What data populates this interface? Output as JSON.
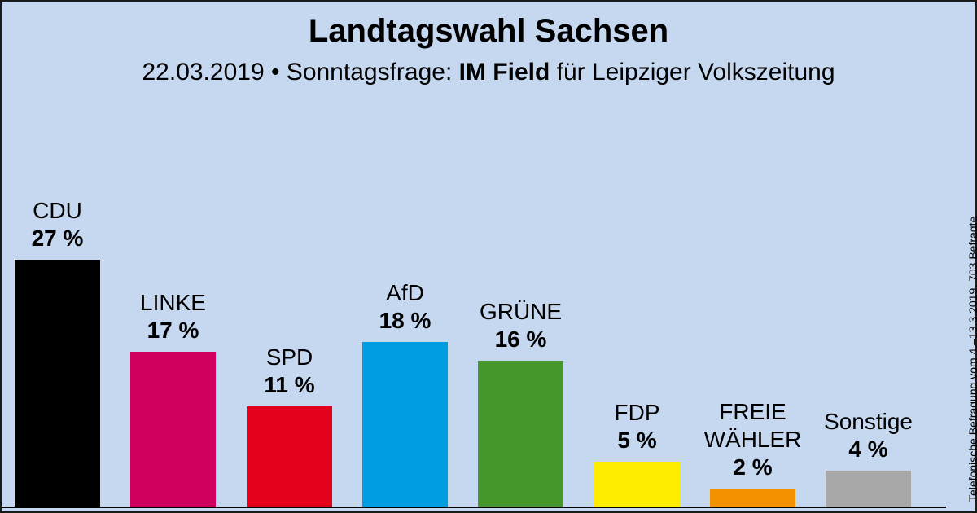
{
  "header": {
    "title": "Landtagswahl Sachsen",
    "subtitle_pre": "22.03.2019 • Sonntagsfrage: ",
    "subtitle_bold": "IM Field",
    "subtitle_post": " für Leipziger Volkszeitung"
  },
  "source_note": "Telefonische Befragung vom 4.–13.3.2019, 703 Befragte",
  "chart_data": {
    "type": "bar",
    "title": "Landtagswahl Sachsen",
    "subtitle": "22.03.2019 • Sonntagsfrage: IM Field für Leipziger Volkszeitung",
    "categories": [
      "CDU",
      "LINKE",
      "SPD",
      "AfD",
      "GRÜNE",
      "FDP",
      "FREIE WÄHLER",
      "Sonstige"
    ],
    "category_lines": [
      [
        "CDU"
      ],
      [
        "LINKE"
      ],
      [
        "SPD"
      ],
      [
        "AfD"
      ],
      [
        "GRÜNE"
      ],
      [
        "FDP"
      ],
      [
        "FREIE",
        "WÄHLER"
      ],
      [
        "Sonstige"
      ]
    ],
    "values": [
      27,
      17,
      11,
      18,
      16,
      5,
      2,
      4
    ],
    "value_labels": [
      "27 %",
      "17 %",
      "11 %",
      "18 %",
      "16 %",
      "5 %",
      "2 %",
      "4 %"
    ],
    "colors": [
      "#000000",
      "#d0005e",
      "#e3001b",
      "#009ee0",
      "#46962b",
      "#ffed00",
      "#f39200",
      "#a8a8a8"
    ],
    "unit": "%",
    "ylim": [
      0,
      27
    ],
    "grid": false,
    "legend": "none"
  }
}
